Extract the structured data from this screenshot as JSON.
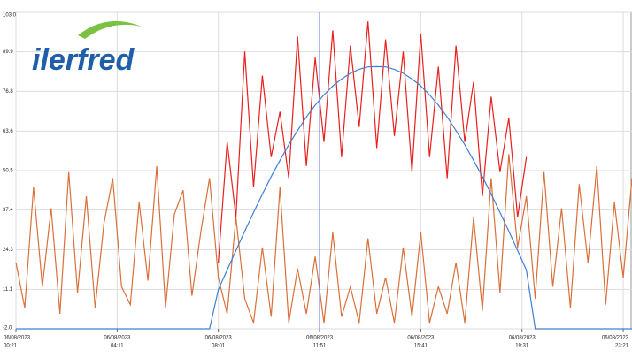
{
  "logo": "ilerfred",
  "chart_data": {
    "type": "line",
    "x": [
      21,
      41,
      61,
      81,
      101,
      121,
      141,
      161,
      181,
      201,
      221,
      241,
      261,
      281,
      301,
      321,
      341,
      361,
      381,
      401,
      421,
      441,
      461,
      481,
      501,
      521,
      541,
      561,
      581,
      601,
      621,
      641,
      661,
      681,
      701,
      721,
      741,
      761,
      781,
      801,
      821,
      841,
      861,
      881,
      901,
      921,
      941,
      961,
      981,
      1001,
      1021,
      1041,
      1061,
      1081,
      1101,
      1121,
      1141,
      1161,
      1181,
      1201,
      1221,
      1241,
      1261,
      1281,
      1301,
      1321,
      1341,
      1361,
      1381,
      1401,
      1421
    ],
    "series": [
      {
        "color": "#d9703a",
        "values": [
          20,
          5,
          45,
          12,
          38,
          3,
          50,
          10,
          42,
          5,
          33,
          48,
          12,
          6,
          40,
          14,
          52,
          5,
          36,
          44,
          9,
          30,
          48,
          15,
          3,
          35,
          8,
          0,
          25,
          2,
          45,
          0,
          18,
          3,
          22,
          0,
          30,
          2,
          12,
          0,
          28,
          3,
          15,
          0,
          25,
          2,
          30,
          0,
          12,
          3,
          20,
          0,
          35,
          4,
          48,
          10,
          56,
          25,
          42,
          8,
          50,
          12,
          38,
          5,
          46,
          20,
          52,
          6,
          40,
          15,
          48
        ]
      },
      {
        "color": "#e8201e",
        "values": [
          null,
          null,
          null,
          null,
          null,
          null,
          null,
          null,
          null,
          null,
          null,
          null,
          null,
          null,
          null,
          null,
          null,
          null,
          null,
          null,
          null,
          null,
          null,
          20,
          60,
          35,
          90,
          45,
          82,
          55,
          70,
          48,
          95,
          52,
          88,
          60,
          97,
          55,
          92,
          65,
          100,
          58,
          94,
          62,
          90,
          50,
          96,
          55,
          85,
          48,
          92,
          60,
          80,
          42,
          75,
          50,
          68,
          35,
          55,
          null,
          null,
          null,
          null,
          null,
          null,
          null,
          null,
          null,
          null,
          null,
          null
        ]
      },
      {
        "color": "#3f7fd4",
        "values": [
          -2,
          -2,
          -2,
          -2,
          -2,
          -2,
          -2,
          -2,
          -2,
          -2,
          -2,
          -2,
          -2,
          -2,
          -2,
          -2,
          -2,
          -2,
          -2,
          -2,
          -2,
          -2,
          -2,
          11,
          17.5,
          24,
          30.4,
          36.6,
          42.7,
          48.5,
          53.9,
          59.1,
          63.8,
          68.3,
          72.2,
          75.6,
          78.6,
          80.9,
          82.8,
          84.1,
          84.9,
          85,
          84.9,
          84.1,
          82.8,
          80.9,
          78.6,
          75.6,
          72.2,
          68.3,
          63.8,
          59.1,
          53.9,
          48.5,
          42.7,
          36.6,
          30.4,
          24,
          17.5,
          -2,
          -2,
          -2,
          -2,
          -2,
          -2,
          -2,
          -2,
          -2,
          -2,
          -2,
          -2
        ]
      }
    ],
    "xlim": [
      21,
      1421
    ],
    "xticks": [
      {
        "value": 21,
        "label": "00:21",
        "date": "06/08/2023"
      },
      {
        "value": 251,
        "label": "04:11",
        "date": "06/08/2023"
      },
      {
        "value": 481,
        "label": "08:01",
        "date": "06/08/2023"
      },
      {
        "value": 711,
        "label": "11:51",
        "date": "06/08/2023"
      },
      {
        "value": 941,
        "label": "15:41",
        "date": "06/08/2023"
      },
      {
        "value": 1171,
        "label": "19:31",
        "date": "06/08/2023"
      },
      {
        "value": 1401,
        "label": "23:21",
        "date": "06/08/2023"
      }
    ],
    "ylim": [
      -2,
      103
    ],
    "yticks": [
      {
        "value": -2,
        "label": "-2.0"
      },
      11.1,
      24.3,
      37.4,
      50.5,
      63.6,
      76.8,
      89.9,
      {
        "value": 103,
        "label": "103.0"
      }
    ],
    "cursor_x": 711,
    "cursor_color": "#5a6ee8",
    "grid": true
  }
}
